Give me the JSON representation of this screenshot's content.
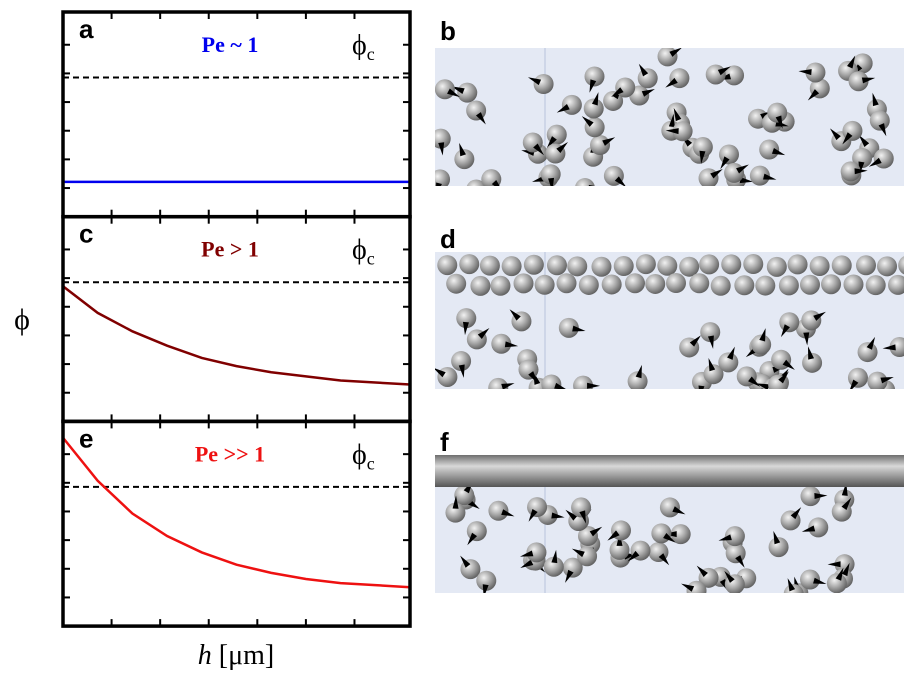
{
  "figure": {
    "ylabel": "ϕ",
    "xlabel": {
      "variable": "h",
      "unit": "[μm]"
    }
  },
  "chart_data": [
    {
      "type": "line",
      "panel": "a",
      "title": "Pe ~ 1",
      "color": "#0000ee",
      "x": [
        0,
        1
      ],
      "values": [
        0.17,
        0.17
      ],
      "threshold": {
        "value": 0.68,
        "symbol": "ϕ",
        "subscript": "c"
      },
      "xlim": [
        0,
        1
      ],
      "ylim": [
        0,
        1
      ],
      "xticks": [
        0.14,
        0.28,
        0.42,
        0.56,
        0.7,
        0.84
      ],
      "yticks": [
        0.14,
        0.28,
        0.42,
        0.56,
        0.7,
        0.84
      ]
    },
    {
      "type": "line",
      "panel": "c",
      "title": "Pe > 1",
      "color": "#800000",
      "x": [
        0,
        0.1,
        0.2,
        0.3,
        0.4,
        0.5,
        0.6,
        0.7,
        0.8,
        0.9,
        1
      ],
      "values": [
        0.66,
        0.53,
        0.44,
        0.37,
        0.31,
        0.27,
        0.24,
        0.22,
        0.2,
        0.19,
        0.18
      ],
      "threshold": {
        "value": 0.68,
        "symbol": "ϕ",
        "subscript": "c"
      },
      "xlim": [
        0,
        1
      ],
      "ylim": [
        0,
        1
      ],
      "xticks": [
        0.14,
        0.28,
        0.42,
        0.56,
        0.7,
        0.84
      ],
      "yticks": [
        0.14,
        0.28,
        0.42,
        0.56,
        0.7,
        0.84
      ]
    },
    {
      "type": "line",
      "panel": "e",
      "title": "Pe >> 1",
      "color": "#ee1111",
      "x": [
        0,
        0.1,
        0.2,
        0.3,
        0.4,
        0.5,
        0.6,
        0.7,
        0.8,
        0.9,
        1
      ],
      "values": [
        0.92,
        0.71,
        0.55,
        0.44,
        0.36,
        0.3,
        0.26,
        0.23,
        0.21,
        0.2,
        0.19
      ],
      "threshold": {
        "value": 0.68,
        "symbol": "ϕ",
        "subscript": "c"
      },
      "xlim": [
        0,
        1
      ],
      "ylim": [
        0,
        1
      ],
      "xticks": [
        0.14,
        0.28,
        0.42,
        0.56,
        0.7,
        0.84
      ],
      "yticks": [
        0.14,
        0.28,
        0.42,
        0.56,
        0.7,
        0.84
      ]
    }
  ],
  "illustrations": [
    {
      "panel": "b"
    },
    {
      "panel": "d"
    },
    {
      "panel": "f"
    }
  ]
}
